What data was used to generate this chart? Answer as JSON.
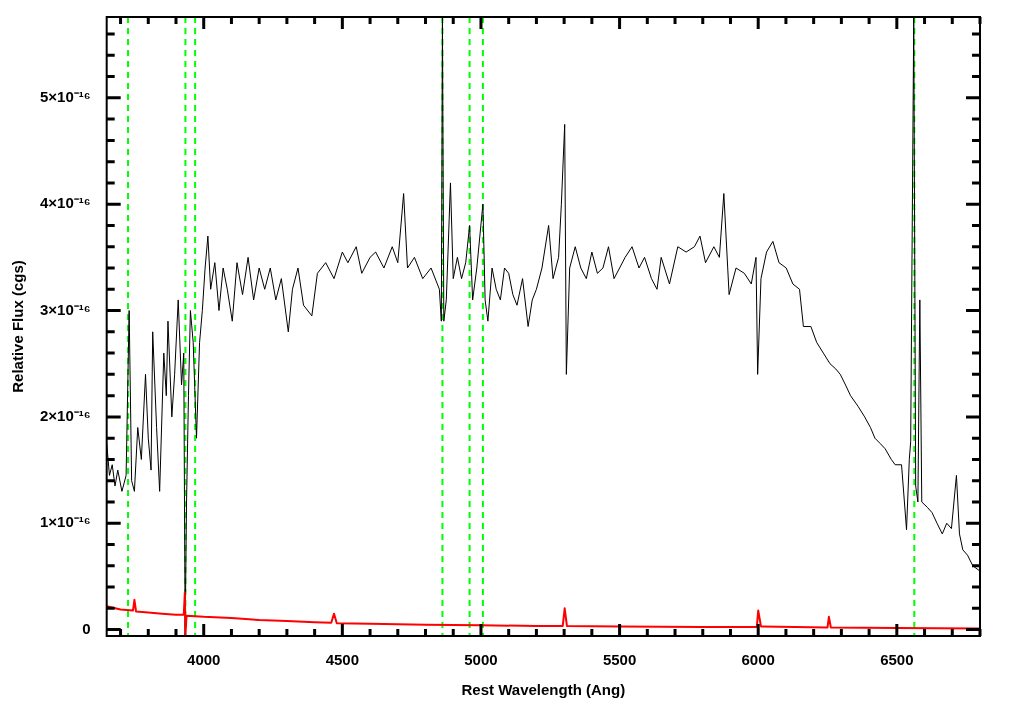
{
  "chart_data": {
    "type": "line",
    "xlabel": "Rest Wavelength (Ang)",
    "ylabel": "Relative Flux (cgs)",
    "xlim": [
      3650,
      6800
    ],
    "ylim": [
      -6e-18,
      5.76e-16
    ],
    "xticks": [
      {
        "value": 3700,
        "label": null
      },
      {
        "value": 3800,
        "label": null
      },
      {
        "value": 3900,
        "label": null
      },
      4000,
      {
        "value": 4100,
        "label": null
      },
      {
        "value": 4200,
        "label": null
      },
      {
        "value": 4300,
        "label": null
      },
      {
        "value": 4400,
        "label": null
      },
      4500,
      {
        "value": 4600,
        "label": null
      },
      {
        "value": 4700,
        "label": null
      },
      {
        "value": 4800,
        "label": null
      },
      {
        "value": 4900,
        "label": null
      },
      5000,
      {
        "value": 5100,
        "label": null
      },
      {
        "value": 5200,
        "label": null
      },
      {
        "value": 5300,
        "label": null
      },
      {
        "value": 5400,
        "label": null
      },
      5500,
      {
        "value": 5600,
        "label": null
      },
      {
        "value": 5700,
        "label": null
      },
      {
        "value": 5800,
        "label": null
      },
      {
        "value": 5900,
        "label": null
      },
      6000,
      {
        "value": 6100,
        "label": null
      },
      {
        "value": 6200,
        "label": null
      },
      {
        "value": 6300,
        "label": null
      },
      {
        "value": 6400,
        "label": null
      },
      6500,
      {
        "value": 6600,
        "label": null
      },
      {
        "value": 6700,
        "label": null
      },
      {
        "value": 6800,
        "label": null
      }
    ],
    "yticks": [
      0,
      {
        "value": 2e-17,
        "label": null
      },
      {
        "value": 4e-17,
        "label": null
      },
      {
        "value": 6e-17,
        "label": null
      },
      {
        "value": 8e-17,
        "label": null
      },
      {
        "value": 1e-16,
        "label": "1×10⁻¹⁶"
      },
      {
        "value": 1.2e-16,
        "label": null
      },
      {
        "value": 1.4e-16,
        "label": null
      },
      {
        "value": 1.6e-16,
        "label": null
      },
      {
        "value": 1.8e-16,
        "label": null
      },
      {
        "value": 2e-16,
        "label": "2×10⁻¹⁶"
      },
      {
        "value": 2.2e-16,
        "label": null
      },
      {
        "value": 2.4e-16,
        "label": null
      },
      {
        "value": 2.6e-16,
        "label": null
      },
      {
        "value": 2.8e-16,
        "label": null
      },
      {
        "value": 3e-16,
        "label": "3×10⁻¹⁶"
      },
      {
        "value": 3.2e-16,
        "label": null
      },
      {
        "value": 3.4e-16,
        "label": null
      },
      {
        "value": 3.6e-16,
        "label": null
      },
      {
        "value": 3.8e-16,
        "label": null
      },
      {
        "value": 4e-16,
        "label": "4×10⁻¹⁶"
      },
      {
        "value": 4.2e-16,
        "label": null
      },
      {
        "value": 4.4e-16,
        "label": null
      },
      {
        "value": 4.6e-16,
        "label": null
      },
      {
        "value": 4.8e-16,
        "label": null
      },
      {
        "value": 5e-16,
        "label": "5×10⁻¹⁶"
      },
      {
        "value": 5.2e-16,
        "label": null
      },
      {
        "value": 5.4e-16,
        "label": null
      },
      {
        "value": 5.6e-16,
        "label": null
      }
    ],
    "ref_lines": [
      {
        "axis": "x",
        "value": 3727,
        "color": "#00ff00",
        "line_style": "dashed"
      },
      {
        "axis": "x",
        "value": 3934,
        "color": "#00ff00",
        "line_style": "dashed"
      },
      {
        "axis": "x",
        "value": 3969,
        "color": "#00ff00",
        "line_style": "dashed"
      },
      {
        "axis": "x",
        "value": 4861,
        "color": "#00ff00",
        "line_style": "dashed"
      },
      {
        "axis": "x",
        "value": 4959,
        "color": "#00ff00",
        "line_style": "dashed"
      },
      {
        "axis": "x",
        "value": 5007,
        "color": "#00ff00",
        "line_style": "dashed"
      },
      {
        "axis": "x",
        "value": 6563,
        "color": "#00ff00",
        "line_style": "dashed"
      }
    ],
    "series": [
      {
        "color": "#000000",
        "x": [
          3650,
          3660,
          3670,
          3680,
          3690,
          3705,
          3720,
          3731,
          3740,
          3750,
          3762,
          3775,
          3790,
          3800,
          3810,
          3816,
          3830,
          3841,
          3856,
          3865,
          3871,
          3885,
          3895,
          3908,
          3920,
          3928,
          3933,
          3938,
          3945,
          3952,
          3962,
          3974,
          3985,
          3995,
          4005,
          4015,
          4025,
          4040,
          4055,
          4070,
          4085,
          4103,
          4120,
          4140,
          4160,
          4180,
          4200,
          4220,
          4240,
          4260,
          4280,
          4305,
          4320,
          4340,
          4360,
          4390,
          4410,
          4440,
          4470,
          4500,
          4520,
          4550,
          4570,
          4600,
          4620,
          4650,
          4680,
          4700,
          4721,
          4735,
          4760,
          4790,
          4820,
          4850,
          4857,
          4861,
          4866,
          4875,
          4890,
          4900,
          4915,
          4930,
          4945,
          4959,
          4970,
          4985,
          5007,
          5015,
          5025,
          5040,
          5055,
          5070,
          5085,
          5100,
          5115,
          5130,
          5150,
          5170,
          5185,
          5200,
          5220,
          5244,
          5260,
          5280,
          5290,
          5302,
          5308,
          5320,
          5340,
          5360,
          5380,
          5400,
          5420,
          5440,
          5460,
          5480,
          5500,
          5520,
          5545,
          5570,
          5590,
          5615,
          5635,
          5650,
          5680,
          5710,
          5740,
          5770,
          5790,
          5810,
          5840,
          5860,
          5876,
          5895,
          5920,
          5950,
          5975,
          5992,
          5998,
          6010,
          6030,
          6053,
          6075,
          6101,
          6125,
          6149,
          6163,
          6190,
          6211,
          6235,
          6259,
          6280,
          6296,
          6315,
          6333,
          6360,
          6384,
          6405,
          6421,
          6440,
          6458,
          6480,
          6494,
          6517,
          6535,
          6545,
          6550,
          6561,
          6568,
          6576,
          6583,
          6590,
          6610,
          6627,
          6645,
          6664,
          6680,
          6697,
          6715,
          6726,
          6738,
          6755,
          6774,
          6800
        ],
        "values": [
          1.75e-16,
          1.45e-16,
          1.55e-16,
          1.35e-16,
          1.5e-16,
          1.3e-16,
          1.45e-16,
          3e-16,
          1.4e-16,
          1.3e-16,
          1.9e-16,
          1.6e-16,
          2.4e-16,
          1.8e-16,
          1.5e-16,
          2.8e-16,
          1.9e-16,
          1.3e-16,
          2.6e-16,
          2.2e-16,
          2.9e-16,
          2e-16,
          2.4e-16,
          3.1e-16,
          2.3e-16,
          2.6e-16,
          -5e-18,
          1.2e-16,
          2.2e-16,
          3e-16,
          2.7e-16,
          1.8e-16,
          2.7e-16,
          3e-16,
          3.4e-16,
          3.7e-16,
          3.2e-16,
          3.45e-16,
          3e-16,
          3.4e-16,
          3.2e-16,
          2.9e-16,
          3.45e-16,
          3.15e-16,
          3.5e-16,
          3.1e-16,
          3.4e-16,
          3.2e-16,
          3.4e-16,
          3.1e-16,
          3.3e-16,
          2.8e-16,
          3.2e-16,
          3.4e-16,
          3.05e-16,
          2.95e-16,
          3.35e-16,
          3.45e-16,
          3.3e-16,
          3.55e-16,
          3.45e-16,
          3.6e-16,
          3.35e-16,
          3.5e-16,
          3.55e-16,
          3.4e-16,
          3.6e-16,
          3.45e-16,
          4.1e-16,
          3.4e-16,
          3.5e-16,
          3.3e-16,
          3.4e-16,
          3.2e-16,
          2.9e-16,
          5.75e-16,
          2.9e-16,
          3.1e-16,
          4.2e-16,
          3.3e-16,
          3.5e-16,
          3.3e-16,
          3.45e-16,
          3.8e-16,
          3.1e-16,
          3.4e-16,
          4e-16,
          3.1e-16,
          2.9e-16,
          3.4e-16,
          3.2e-16,
          3.1e-16,
          3.4e-16,
          3.35e-16,
          3.15e-16,
          3.05e-16,
          3.3e-16,
          2.85e-16,
          3.1e-16,
          3.2e-16,
          3.4e-16,
          3.8e-16,
          3.3e-16,
          3.5e-16,
          4e-16,
          4.75e-16,
          2.4e-16,
          3.4e-16,
          3.6e-16,
          3.4e-16,
          3.3e-16,
          3.55e-16,
          3.35e-16,
          3.4e-16,
          3.6e-16,
          3.3e-16,
          3.4e-16,
          3.5e-16,
          3.6e-16,
          3.4e-16,
          3.5e-16,
          3.3e-16,
          3.2e-16,
          3.5e-16,
          3.25e-16,
          3.6e-16,
          3.55e-16,
          3.6e-16,
          3.7e-16,
          3.45e-16,
          3.6e-16,
          3.5e-16,
          4.1e-16,
          3.15e-16,
          3.4e-16,
          3.35e-16,
          3.25e-16,
          3.5e-16,
          2.4e-16,
          3.3e-16,
          3.55e-16,
          3.65e-16,
          3.45e-16,
          3.4e-16,
          3.25e-16,
          3.2e-16,
          2.85e-16,
          2.85e-16,
          2.7e-16,
          2.6e-16,
          2.5e-16,
          2.45e-16,
          2.4e-16,
          2.3e-16,
          2.2e-16,
          2.1e-16,
          2e-16,
          1.9e-16,
          1.8e-16,
          1.75e-16,
          1.7e-16,
          1.6e-16,
          1.55e-16,
          1.55e-16,
          9.4e-17,
          1.6e-16,
          1.77e-16,
          5.75e-16,
          1.35e-16,
          1.2e-16,
          3.1e-16,
          1.2e-16,
          1.15e-16,
          1.1e-16,
          1e-16,
          9e-17,
          1e-16,
          9.5e-17,
          1.45e-16,
          9e-17,
          7.5e-17,
          7e-17,
          6e-17,
          5.5e-17
        ]
      },
      {
        "color": "#ff0000",
        "x": [
          3650,
          3700,
          3745,
          3750,
          3756,
          3800,
          3850,
          3900,
          3928,
          3932,
          3934,
          3938,
          4000,
          4100,
          4200,
          4300,
          4400,
          4460,
          4470,
          4480,
          4600,
          4700,
          4800,
          5000,
          5200,
          5295,
          5302,
          5310,
          5500,
          5800,
          5995,
          6000,
          6010,
          6250,
          6255,
          6262,
          6500,
          6800
        ],
        "values": [
          2.2e-17,
          1.9e-17,
          1.8e-17,
          2.8e-17,
          1.7e-17,
          1.6e-17,
          1.5e-17,
          1.4e-17,
          1.4e-17,
          3.5e-17,
          -5e-18,
          1.3e-17,
          1.2e-17,
          1.1e-17,
          9e-18,
          8e-18,
          7e-18,
          6.5e-18,
          1.5e-17,
          6e-18,
          5.5e-18,
          5e-18,
          4.5e-18,
          4e-18,
          3.5e-18,
          3.5e-18,
          2e-17,
          3.5e-18,
          3e-18,
          2.5e-18,
          2.5e-18,
          1.8e-17,
          3e-18,
          2e-18,
          1.2e-17,
          2e-18,
          1.5e-18,
          1e-18
        ]
      }
    ]
  }
}
